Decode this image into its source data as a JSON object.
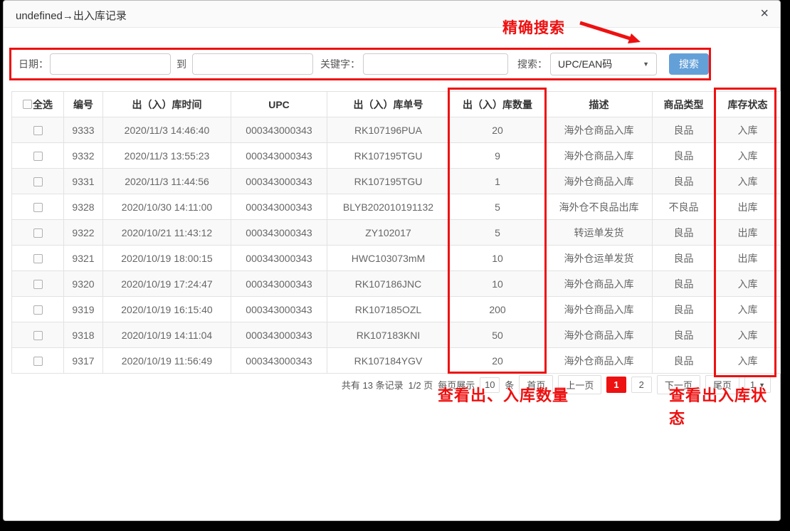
{
  "title_bar": {
    "title": "undefined→出入库记录",
    "close_icon": "×"
  },
  "annotations": {
    "precise_search": "精确搜索",
    "view_quantity": "查看出、入库数量",
    "view_status": "查看出入库状态"
  },
  "search_bar": {
    "date_label": "日期：",
    "date_from": {
      "value": "",
      "placeholder": ""
    },
    "to_label": "到",
    "date_to": {
      "value": "",
      "placeholder": ""
    },
    "keyword_label": "关键字：",
    "keyword": {
      "value": "",
      "placeholder": ""
    },
    "search_type_label": "搜索：",
    "search_type_selected": "UPC/EAN码",
    "dropdown_caret": "▼",
    "search_button": "搜索"
  },
  "table": {
    "select_all_label": "全选",
    "columns": [
      "编号",
      "出（入）库时间",
      "UPC",
      "出（入）库单号",
      "出（入）库数量",
      "描述",
      "商品类型",
      "库存状态"
    ],
    "rows": [
      {
        "id": "9333",
        "time": "2020/11/3 14:46:40",
        "upc": "000343000343",
        "order_no": "RK107196PUA",
        "qty": "20",
        "desc": "海外仓商品入库",
        "type": "良品",
        "status": "入库"
      },
      {
        "id": "9332",
        "time": "2020/11/3 13:55:23",
        "upc": "000343000343",
        "order_no": "RK107195TGU",
        "qty": "9",
        "desc": "海外仓商品入库",
        "type": "良品",
        "status": "入库"
      },
      {
        "id": "9331",
        "time": "2020/11/3 11:44:56",
        "upc": "000343000343",
        "order_no": "RK107195TGU",
        "qty": "1",
        "desc": "海外仓商品入库",
        "type": "良品",
        "status": "入库"
      },
      {
        "id": "9328",
        "time": "2020/10/30 14:11:00",
        "upc": "000343000343",
        "order_no": "BLYB202010191132",
        "qty": "5",
        "desc": "海外仓不良品出库",
        "type": "不良品",
        "status": "出库"
      },
      {
        "id": "9322",
        "time": "2020/10/21 11:43:12",
        "upc": "000343000343",
        "order_no": "ZY102017",
        "qty": "5",
        "desc": "转运单发货",
        "type": "良品",
        "status": "出库"
      },
      {
        "id": "9321",
        "time": "2020/10/19 18:00:15",
        "upc": "000343000343",
        "order_no": "HWC103073mM",
        "qty": "10",
        "desc": "海外仓运单发货",
        "type": "良品",
        "status": "出库"
      },
      {
        "id": "9320",
        "time": "2020/10/19 17:24:47",
        "upc": "000343000343",
        "order_no": "RK107186JNC",
        "qty": "10",
        "desc": "海外仓商品入库",
        "type": "良品",
        "status": "入库"
      },
      {
        "id": "9319",
        "time": "2020/10/19 16:15:40",
        "upc": "000343000343",
        "order_no": "RK107185OZL",
        "qty": "200",
        "desc": "海外仓商品入库",
        "type": "良品",
        "status": "入库"
      },
      {
        "id": "9318",
        "time": "2020/10/19 14:11:04",
        "upc": "000343000343",
        "order_no": "RK107183KNI",
        "qty": "50",
        "desc": "海外仓商品入库",
        "type": "良品",
        "status": "入库"
      },
      {
        "id": "9317",
        "time": "2020/10/19 11:56:49",
        "upc": "000343000343",
        "order_no": "RK107184YGV",
        "qty": "20",
        "desc": "海外仓商品入库",
        "type": "良品",
        "status": "入库"
      }
    ]
  },
  "pagination": {
    "total_text": "共有 13 条记录",
    "page_indicator": "1/2 页",
    "per_page_label": "每页展示",
    "per_page_value": "10",
    "per_page_unit": "条",
    "first_label": "首页",
    "prev_label": "上一页",
    "current_page": "1",
    "other_page": "2",
    "next_label": "下一页",
    "last_label": "尾页",
    "page_select_value": "1",
    "dropdown_caret": "▼"
  },
  "colors": {
    "annotation_red": "#ee1010",
    "search_button_blue": "#64a0d8",
    "current_page_red": "#ee1111"
  }
}
